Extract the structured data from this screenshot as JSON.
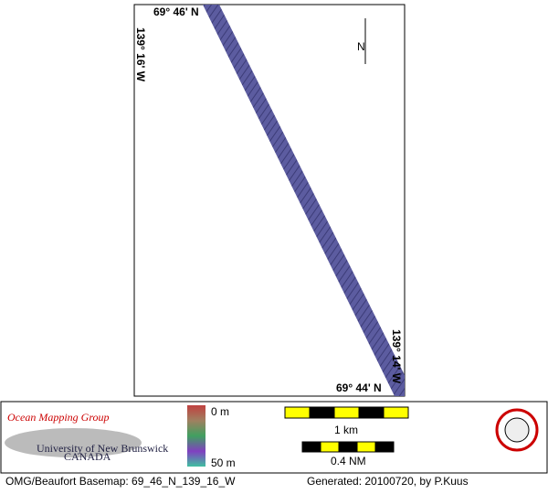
{
  "map": {
    "labels": {
      "top_lat": "69° 46' N",
      "left_lon": "139° 16' W",
      "right_lon": "139° 14' W",
      "bottom_lat": "69° 44' N",
      "north": "N"
    },
    "legend": {
      "org": "Ocean Mapping Group",
      "university": "University of New Brunswick",
      "country": "CANADA",
      "depth_min": "0 m",
      "depth_max": "50 m",
      "scale_km": "1 km",
      "scale_nm": "0.4 NM"
    },
    "footer": {
      "basemap": "OMG/Beaufort Basemap: 69_46_N_139_16_W",
      "generated": "Generated: 20100720, by P.Kuus"
    }
  }
}
